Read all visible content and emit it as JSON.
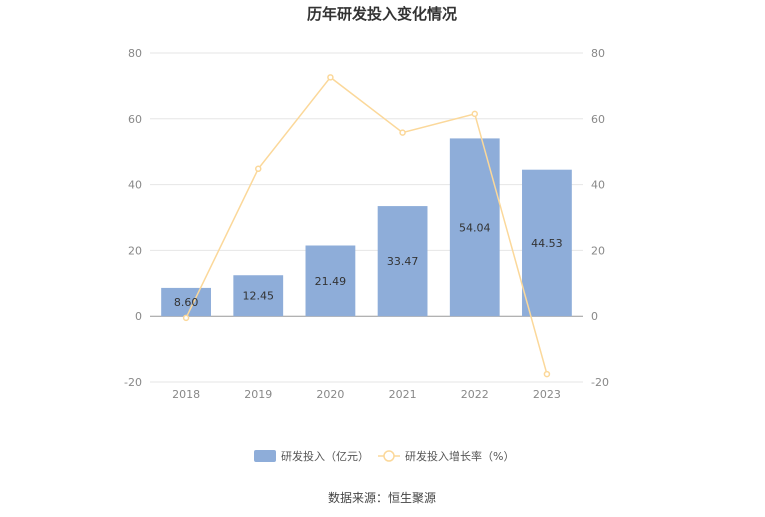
{
  "chart_data": {
    "type": "bar",
    "title": "历年研发投入变化情况",
    "categories": [
      "2018",
      "2019",
      "2020",
      "2021",
      "2022",
      "2023"
    ],
    "series": [
      {
        "name": "研发投入（亿元）",
        "type": "bar",
        "axis": "left",
        "values": [
          8.6,
          12.45,
          21.49,
          33.47,
          54.04,
          44.53
        ],
        "labels": [
          "8.60",
          "12.45",
          "21.49",
          "33.47",
          "54.04",
          "44.53"
        ],
        "color": "#8eadd9"
      },
      {
        "name": "研发投入增长率（%）",
        "type": "line",
        "axis": "right",
        "values": [
          -0.5,
          44.8,
          72.6,
          55.8,
          61.5,
          -17.6
        ],
        "color": "#fbd89a"
      }
    ],
    "ylim": [
      -20,
      80
    ],
    "y2lim": [
      -20,
      80
    ],
    "yticks": [
      "-20",
      "0",
      "20",
      "40",
      "60",
      "80"
    ],
    "y2ticks": [
      "-20",
      "0",
      "20",
      "40",
      "60",
      "80"
    ],
    "grid": true,
    "legend": "bottom-center",
    "source": "数据来源：恒生聚源"
  }
}
